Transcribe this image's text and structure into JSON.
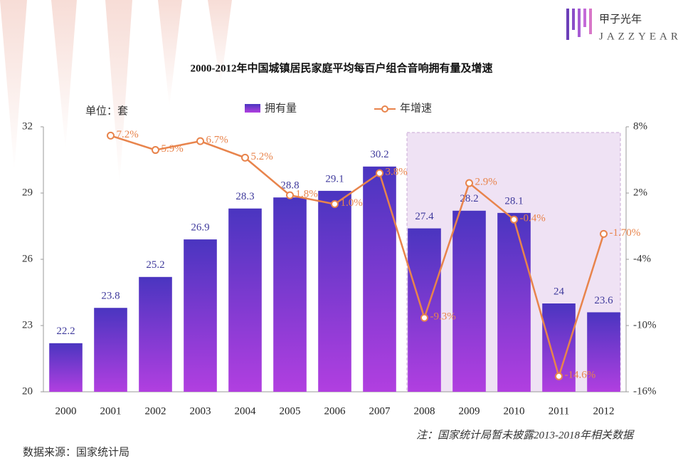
{
  "brand": {
    "name": "甲子光年",
    "sub": "JAZZYEAR"
  },
  "chart_data": {
    "type": "bar-line",
    "title": "2000-2012年中国城镇居民家庭平均每百户组合音响拥有量及增速",
    "unit": "单位：套",
    "note": "注：国家统计局暂未披露2013-2018年相关数据",
    "source": "数据来源：国家统计局",
    "categories": [
      "2000",
      "2001",
      "2002",
      "2003",
      "2004",
      "2005",
      "2006",
      "2007",
      "2008",
      "2009",
      "2010",
      "2011",
      "2012"
    ],
    "series": [
      {
        "name": "拥有量",
        "type": "bar",
        "color": "#4a35c0",
        "values": [
          22.2,
          23.8,
          25.2,
          26.9,
          28.3,
          28.8,
          29.1,
          30.2,
          27.4,
          28.2,
          28.1,
          24,
          23.6
        ]
      },
      {
        "name": "年增速",
        "type": "line",
        "axis": "y2",
        "color": "#e8844c",
        "values": [
          null,
          7.2,
          5.9,
          6.7,
          5.2,
          1.8,
          1.0,
          3.8,
          -9.3,
          2.9,
          -0.4,
          -14.6,
          -1.7
        ],
        "value_labels": [
          null,
          "7.2%",
          "5.9%",
          "6.7%",
          "5.2%",
          "1.8%",
          "1.0%",
          "3.8%",
          "-9.3%",
          "2.9%",
          "-0.4%",
          "-14.6%",
          "-1.70%"
        ]
      }
    ],
    "ylim": [
      20,
      32
    ],
    "yticks": [
      20,
      23,
      26,
      29,
      32
    ],
    "y2lim": [
      -16,
      8
    ],
    "y2ticks": [
      {
        "value": -16,
        "label": "-16%"
      },
      {
        "value": -10,
        "label": "-10%"
      },
      {
        "value": -4,
        "label": "-4%"
      },
      {
        "value": 2,
        "label": "2%"
      },
      {
        "value": 8,
        "label": "8%"
      }
    ],
    "legend": "top"
  }
}
